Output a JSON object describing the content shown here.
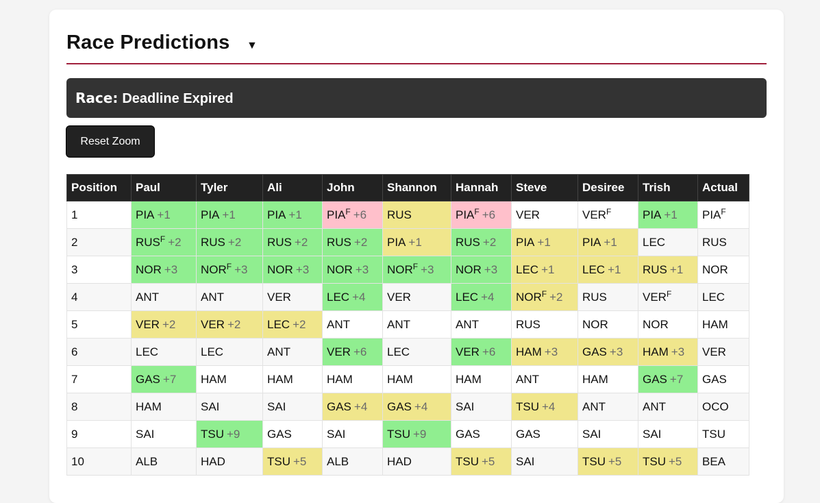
{
  "header": {
    "title": "Race Predictions",
    "caret": "▼"
  },
  "race": {
    "label": "Race:",
    "status": "Deadline Expired"
  },
  "toolbar": {
    "reset_label": "Reset Zoom"
  },
  "colors": {
    "green": "#90ee90",
    "yellow": "#f0e68c",
    "pink": "#ffc0cb",
    "accent": "#a0203c"
  },
  "table": {
    "columns": [
      "Position",
      "Paul",
      "Tyler",
      "Ali",
      "John",
      "Shannon",
      "Hannah",
      "Steve",
      "Desiree",
      "Trish",
      "Actual"
    ],
    "rows": [
      {
        "pos": "1",
        "cells": [
          {
            "d": "PIA",
            "p": "+1",
            "c": "green"
          },
          {
            "d": "PIA",
            "p": "+1",
            "c": "green"
          },
          {
            "d": "PIA",
            "p": "+1",
            "c": "green"
          },
          {
            "d": "PIA",
            "f": "F",
            "p": "+6",
            "c": "pink"
          },
          {
            "d": "RUS",
            "c": "yellow"
          },
          {
            "d": "PIA",
            "f": "F",
            "p": "+6",
            "c": "pink"
          },
          {
            "d": "VER"
          },
          {
            "d": "VER",
            "f": "F"
          },
          {
            "d": "PIA",
            "p": "+1",
            "c": "green"
          },
          {
            "d": "PIA",
            "f": "F"
          }
        ]
      },
      {
        "pos": "2",
        "cells": [
          {
            "d": "RUS",
            "f": "F",
            "p": "+2",
            "c": "green"
          },
          {
            "d": "RUS",
            "p": "+2",
            "c": "green"
          },
          {
            "d": "RUS",
            "p": "+2",
            "c": "green"
          },
          {
            "d": "RUS",
            "p": "+2",
            "c": "green"
          },
          {
            "d": "PIA",
            "p": "+1",
            "c": "yellow"
          },
          {
            "d": "RUS",
            "p": "+2",
            "c": "green"
          },
          {
            "d": "PIA",
            "p": "+1",
            "c": "yellow"
          },
          {
            "d": "PIA",
            "p": "+1",
            "c": "yellow"
          },
          {
            "d": "LEC"
          },
          {
            "d": "RUS"
          }
        ]
      },
      {
        "pos": "3",
        "cells": [
          {
            "d": "NOR",
            "p": "+3",
            "c": "green"
          },
          {
            "d": "NOR",
            "f": "F",
            "p": "+3",
            "c": "green"
          },
          {
            "d": "NOR",
            "p": "+3",
            "c": "green"
          },
          {
            "d": "NOR",
            "p": "+3",
            "c": "green"
          },
          {
            "d": "NOR",
            "f": "F",
            "p": "+3",
            "c": "green"
          },
          {
            "d": "NOR",
            "p": "+3",
            "c": "green"
          },
          {
            "d": "LEC",
            "p": "+1",
            "c": "yellow"
          },
          {
            "d": "LEC",
            "p": "+1",
            "c": "yellow"
          },
          {
            "d": "RUS",
            "p": "+1",
            "c": "yellow"
          },
          {
            "d": "NOR"
          }
        ]
      },
      {
        "pos": "4",
        "cells": [
          {
            "d": "ANT"
          },
          {
            "d": "ANT"
          },
          {
            "d": "VER"
          },
          {
            "d": "LEC",
            "p": "+4",
            "c": "green"
          },
          {
            "d": "VER"
          },
          {
            "d": "LEC",
            "p": "+4",
            "c": "green"
          },
          {
            "d": "NOR",
            "f": "F",
            "p": "+2",
            "c": "yellow"
          },
          {
            "d": "RUS"
          },
          {
            "d": "VER",
            "f": "F"
          },
          {
            "d": "LEC"
          }
        ]
      },
      {
        "pos": "5",
        "cells": [
          {
            "d": "VER",
            "p": "+2",
            "c": "yellow"
          },
          {
            "d": "VER",
            "p": "+2",
            "c": "yellow"
          },
          {
            "d": "LEC",
            "p": "+2",
            "c": "yellow"
          },
          {
            "d": "ANT"
          },
          {
            "d": "ANT"
          },
          {
            "d": "ANT"
          },
          {
            "d": "RUS"
          },
          {
            "d": "NOR"
          },
          {
            "d": "NOR"
          },
          {
            "d": "HAM"
          }
        ]
      },
      {
        "pos": "6",
        "cells": [
          {
            "d": "LEC"
          },
          {
            "d": "LEC"
          },
          {
            "d": "ANT"
          },
          {
            "d": "VER",
            "p": "+6",
            "c": "green"
          },
          {
            "d": "LEC"
          },
          {
            "d": "VER",
            "p": "+6",
            "c": "green"
          },
          {
            "d": "HAM",
            "p": "+3",
            "c": "yellow"
          },
          {
            "d": "GAS",
            "p": "+3",
            "c": "yellow"
          },
          {
            "d": "HAM",
            "p": "+3",
            "c": "yellow"
          },
          {
            "d": "VER"
          }
        ]
      },
      {
        "pos": "7",
        "cells": [
          {
            "d": "GAS",
            "p": "+7",
            "c": "green"
          },
          {
            "d": "HAM"
          },
          {
            "d": "HAM"
          },
          {
            "d": "HAM"
          },
          {
            "d": "HAM"
          },
          {
            "d": "HAM"
          },
          {
            "d": "ANT"
          },
          {
            "d": "HAM"
          },
          {
            "d": "GAS",
            "p": "+7",
            "c": "green"
          },
          {
            "d": "GAS"
          }
        ]
      },
      {
        "pos": "8",
        "cells": [
          {
            "d": "HAM"
          },
          {
            "d": "SAI"
          },
          {
            "d": "SAI"
          },
          {
            "d": "GAS",
            "p": "+4",
            "c": "yellow"
          },
          {
            "d": "GAS",
            "p": "+4",
            "c": "yellow"
          },
          {
            "d": "SAI"
          },
          {
            "d": "TSU",
            "p": "+4",
            "c": "yellow"
          },
          {
            "d": "ANT"
          },
          {
            "d": "ANT"
          },
          {
            "d": "OCO"
          }
        ]
      },
      {
        "pos": "9",
        "cells": [
          {
            "d": "SAI"
          },
          {
            "d": "TSU",
            "p": "+9",
            "c": "green"
          },
          {
            "d": "GAS"
          },
          {
            "d": "SAI"
          },
          {
            "d": "TSU",
            "p": "+9",
            "c": "green"
          },
          {
            "d": "GAS"
          },
          {
            "d": "GAS"
          },
          {
            "d": "SAI"
          },
          {
            "d": "SAI"
          },
          {
            "d": "TSU"
          }
        ]
      },
      {
        "pos": "10",
        "cells": [
          {
            "d": "ALB"
          },
          {
            "d": "HAD"
          },
          {
            "d": "TSU",
            "p": "+5",
            "c": "yellow"
          },
          {
            "d": "ALB"
          },
          {
            "d": "HAD"
          },
          {
            "d": "TSU",
            "p": "+5",
            "c": "yellow"
          },
          {
            "d": "SAI"
          },
          {
            "d": "TSU",
            "p": "+5",
            "c": "yellow"
          },
          {
            "d": "TSU",
            "p": "+5",
            "c": "yellow"
          },
          {
            "d": "BEA"
          }
        ]
      }
    ]
  }
}
